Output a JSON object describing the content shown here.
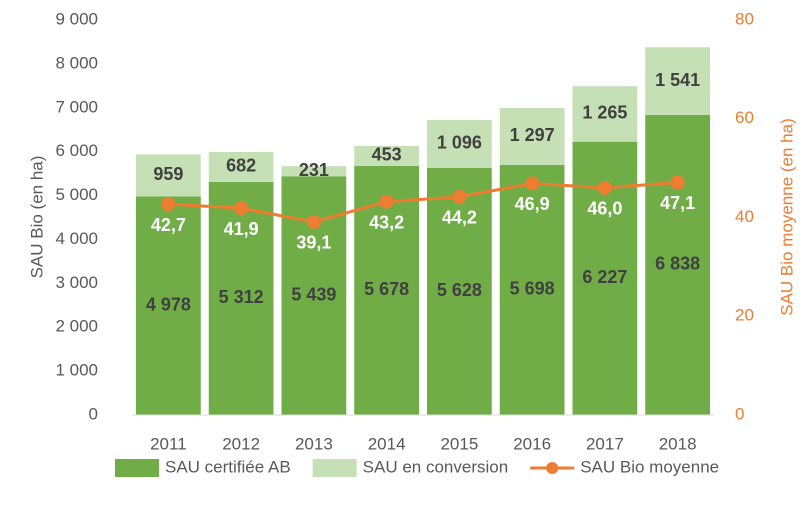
{
  "chart_data": {
    "type": "bar",
    "stacked": true,
    "categories": [
      "2011",
      "2012",
      "2013",
      "2014",
      "2015",
      "2016",
      "2017",
      "2018"
    ],
    "y_label": "SAU Bio (en ha)",
    "y2_label": "SAU Bio moyenne (en ha)",
    "ylim": [
      0,
      9000
    ],
    "yticks": [
      0,
      {
        "value": 1000,
        "label": "1 000"
      },
      {
        "value": 2000,
        "label": "2 000"
      },
      {
        "value": 3000,
        "label": "3 000"
      },
      {
        "value": 4000,
        "label": "4 000"
      },
      {
        "value": 5000,
        "label": "5 000"
      },
      {
        "value": 6000,
        "label": "6 000"
      },
      {
        "value": 7000,
        "label": "7 000"
      },
      {
        "value": 8000,
        "label": "8 000"
      },
      {
        "value": 9000,
        "label": "9 000"
      }
    ],
    "y2lim": [
      0,
      80
    ],
    "y2ticks": [
      0,
      20,
      40,
      60,
      80
    ],
    "legend": "bottom",
    "series": [
      {
        "name": "SAU certifiée AB",
        "type": "bar",
        "color": "#70ad47",
        "values": [
          4978,
          5312,
          5439,
          5678,
          5628,
          5698,
          6227,
          6838
        ],
        "value_labels": [
          "4 978",
          "5 312",
          "5 439",
          "5 678",
          "5 628",
          "5 698",
          "6 227",
          "6 838"
        ]
      },
      {
        "name": "SAU en conversion",
        "type": "bar",
        "color": "#c5e0b4",
        "values": [
          959,
          682,
          231,
          453,
          1096,
          1297,
          1265,
          1541
        ],
        "value_labels": [
          "959",
          "682",
          "231",
          "453",
          "1 096",
          "1 297",
          "1 265",
          "1 541"
        ]
      },
      {
        "name": "SAU Bio moyenne",
        "type": "line",
        "axis": "y2",
        "color": "#ed7d31",
        "values": [
          42.7,
          41.9,
          39.1,
          43.2,
          44.2,
          46.9,
          46.0,
          47.1
        ],
        "value_labels": [
          "42,7",
          "41,9",
          "39,1",
          "43,2",
          "44,2",
          "46,9",
          "46,0",
          "47,1"
        ]
      }
    ]
  }
}
